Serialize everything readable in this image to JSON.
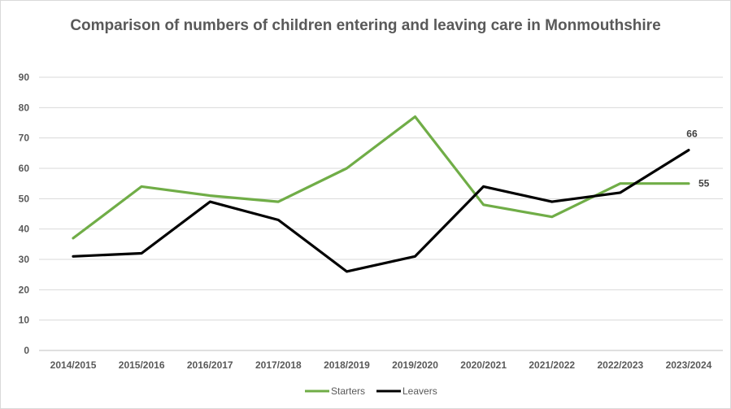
{
  "chart_data": {
    "type": "line",
    "title": "Comparison of numbers of children entering and leaving care in Monmouthshire",
    "categories": [
      "2014/2015",
      "2015/2016",
      "2016/2017",
      "2017/2018",
      "2018/2019",
      "2019/2020",
      "2020/2021",
      "2021/2022",
      "2022/2023",
      "2023/2024"
    ],
    "series": [
      {
        "name": "Starters",
        "color": "#70ad47",
        "values": [
          37,
          54,
          51,
          49,
          60,
          77,
          48,
          44,
          55,
          55
        ]
      },
      {
        "name": "Leavers",
        "color": "#000000",
        "values": [
          31,
          32,
          49,
          43,
          26,
          31,
          54,
          49,
          52,
          66
        ]
      }
    ],
    "data_labels": [
      {
        "series": "Leavers",
        "index": 9,
        "text": "66"
      },
      {
        "series": "Starters",
        "index": 9,
        "text": "55"
      }
    ],
    "yticks": [
      "0",
      "10",
      "20",
      "30",
      "40",
      "50",
      "60",
      "70",
      "80",
      "90"
    ],
    "ylim": [
      0,
      90
    ],
    "xlabel": "",
    "ylabel": "",
    "grid": true,
    "legend_position": "bottom"
  }
}
